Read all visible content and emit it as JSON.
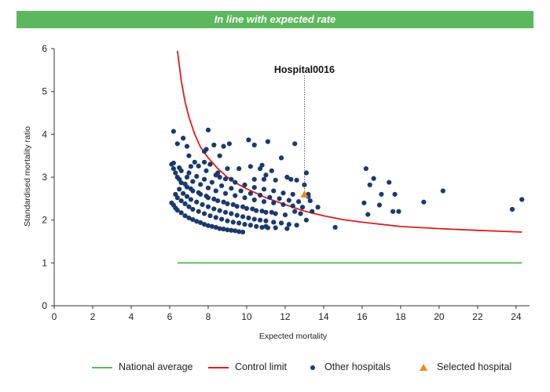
{
  "banner": {
    "text": "In line with expected rate",
    "color": "#5cb85c"
  },
  "chart_data": {
    "type": "scatter",
    "xlabel": "Expected mortality",
    "ylabel": "Standardised mortality ratio",
    "xlim": [
      0,
      24.7
    ],
    "ylim": [
      0,
      6
    ],
    "xticks": [
      "0",
      "2",
      "4",
      "6",
      "8",
      "10",
      "12",
      "14",
      "16",
      "18",
      "20",
      "22",
      "24"
    ],
    "yticks": [
      "0",
      "1",
      "2",
      "3",
      "4",
      "5",
      "6"
    ],
    "grid": false,
    "legend_position": "bottom",
    "national_average": {
      "name": "National average",
      "y": 1,
      "x_range": [
        6.4,
        24.3
      ],
      "color": "#5cb85c"
    },
    "control_limit": {
      "name": "Control limit",
      "color": "#e31a1c",
      "points": [
        [
          6.4,
          5.95
        ],
        [
          6.6,
          5.25
        ],
        [
          6.8,
          4.75
        ],
        [
          7.0,
          4.4
        ],
        [
          7.3,
          4.0
        ],
        [
          7.6,
          3.7
        ],
        [
          8.0,
          3.45
        ],
        [
          8.5,
          3.2
        ],
        [
          9.0,
          3.0
        ],
        [
          9.5,
          2.85
        ],
        [
          10.0,
          2.73
        ],
        [
          11.0,
          2.52
        ],
        [
          12.0,
          2.36
        ],
        [
          13.0,
          2.21
        ],
        [
          14.0,
          2.1
        ],
        [
          15.0,
          2.01
        ],
        [
          16.0,
          1.95
        ],
        [
          18.0,
          1.85
        ],
        [
          20.0,
          1.8
        ],
        [
          22.0,
          1.76
        ],
        [
          24.3,
          1.72
        ]
      ]
    },
    "other_hospitals": {
      "name": "Other hospitals",
      "color": "#1a3a6e",
      "points": [
        [
          6.2,
          4.07
        ],
        [
          6.4,
          3.78
        ],
        [
          6.7,
          3.91
        ],
        [
          6.9,
          3.72
        ],
        [
          7.0,
          3.5
        ],
        [
          7.3,
          3.35
        ],
        [
          7.5,
          3.26
        ],
        [
          8.0,
          4.1
        ],
        [
          7.8,
          3.6
        ],
        [
          7.9,
          3.65
        ],
        [
          8.3,
          3.75
        ],
        [
          8.6,
          3.5
        ],
        [
          8.8,
          3.72
        ],
        [
          9.1,
          3.78
        ],
        [
          8.1,
          3.3
        ],
        [
          8.5,
          3.1
        ],
        [
          9.0,
          3.2
        ],
        [
          9.6,
          3.2
        ],
        [
          10.1,
          3.87
        ],
        [
          10.4,
          3.75
        ],
        [
          11.1,
          3.83
        ],
        [
          12.5,
          3.78
        ],
        [
          10.2,
          3.25
        ],
        [
          10.8,
          3.28
        ],
        [
          11.3,
          3.15
        ],
        [
          11.8,
          3.45
        ],
        [
          12.1,
          3.0
        ],
        [
          13.1,
          3.1
        ],
        [
          11.0,
          3.05
        ],
        [
          10.7,
          3.2
        ],
        [
          6.2,
          3.33
        ],
        [
          6.5,
          3.22
        ],
        [
          7.1,
          3.25
        ],
        [
          7.8,
          3.35
        ],
        [
          8.6,
          3.0
        ],
        [
          9.2,
          2.95
        ],
        [
          10.4,
          2.95
        ],
        [
          10.9,
          2.95
        ],
        [
          11.5,
          2.93
        ],
        [
          12.3,
          2.95
        ],
        [
          13.2,
          2.6
        ],
        [
          6.1,
          3.3
        ],
        [
          6.2,
          3.2
        ],
        [
          6.4,
          3.0
        ],
        [
          6.6,
          2.87
        ],
        [
          6.9,
          2.77
        ],
        [
          7.2,
          2.68
        ],
        [
          7.6,
          2.6
        ],
        [
          8.0,
          2.52
        ],
        [
          8.5,
          2.45
        ],
        [
          9.0,
          2.38
        ],
        [
          9.5,
          2.32
        ],
        [
          10.0,
          2.27
        ],
        [
          10.5,
          2.22
        ],
        [
          11.0,
          2.18
        ],
        [
          11.5,
          2.15
        ],
        [
          12.0,
          2.12
        ],
        [
          6.3,
          3.1
        ],
        [
          6.5,
          2.95
        ],
        [
          6.8,
          2.84
        ],
        [
          7.1,
          2.73
        ],
        [
          7.5,
          2.64
        ],
        [
          7.9,
          2.56
        ],
        [
          8.3,
          2.49
        ],
        [
          8.8,
          2.42
        ],
        [
          9.3,
          2.36
        ],
        [
          9.8,
          2.31
        ],
        [
          10.3,
          2.26
        ],
        [
          10.8,
          2.21
        ],
        [
          11.3,
          2.18
        ],
        [
          6.6,
          3.15
        ],
        [
          6.9,
          3.0
        ],
        [
          7.2,
          2.9
        ],
        [
          7.6,
          2.83
        ],
        [
          8.0,
          2.75
        ],
        [
          8.4,
          2.68
        ],
        [
          8.9,
          2.62
        ],
        [
          9.4,
          2.57
        ],
        [
          9.9,
          2.52
        ],
        [
          10.4,
          2.47
        ],
        [
          10.9,
          2.43
        ],
        [
          11.4,
          2.4
        ],
        [
          11.9,
          2.36
        ],
        [
          12.4,
          2.33
        ],
        [
          12.9,
          2.3
        ],
        [
          7.0,
          3.1
        ],
        [
          7.4,
          3.02
        ],
        [
          7.8,
          2.95
        ],
        [
          8.2,
          2.88
        ],
        [
          8.7,
          2.8
        ],
        [
          9.2,
          2.74
        ],
        [
          9.7,
          2.68
        ],
        [
          10.2,
          2.62
        ],
        [
          10.7,
          2.58
        ],
        [
          11.2,
          2.53
        ],
        [
          11.7,
          2.5
        ],
        [
          12.2,
          2.46
        ],
        [
          12.7,
          2.43
        ],
        [
          7.9,
          3.15
        ],
        [
          8.4,
          3.05
        ],
        [
          8.9,
          2.96
        ],
        [
          9.4,
          2.88
        ],
        [
          9.9,
          2.82
        ],
        [
          10.4,
          2.76
        ],
        [
          10.9,
          2.72
        ],
        [
          11.4,
          2.68
        ],
        [
          11.9,
          2.63
        ],
        [
          12.4,
          2.6
        ],
        [
          12.6,
          2.93
        ],
        [
          13.0,
          2.82
        ],
        [
          6.1,
          2.4
        ],
        [
          6.2,
          2.35
        ],
        [
          6.3,
          2.28
        ],
        [
          6.4,
          2.23
        ],
        [
          6.6,
          2.17
        ],
        [
          6.8,
          2.1
        ],
        [
          7.0,
          2.05
        ],
        [
          7.2,
          2.01
        ],
        [
          7.4,
          1.97
        ],
        [
          7.6,
          1.94
        ],
        [
          7.8,
          1.9
        ],
        [
          8.0,
          1.87
        ],
        [
          8.2,
          1.85
        ],
        [
          8.4,
          1.83
        ],
        [
          8.6,
          1.8
        ],
        [
          8.8,
          1.79
        ],
        [
          9.0,
          1.77
        ],
        [
          9.2,
          1.76
        ],
        [
          9.4,
          1.75
        ],
        [
          9.6,
          1.73
        ],
        [
          9.8,
          1.72
        ],
        [
          6.3,
          2.6
        ],
        [
          6.4,
          2.52
        ],
        [
          6.6,
          2.45
        ],
        [
          6.8,
          2.38
        ],
        [
          7.0,
          2.31
        ],
        [
          7.2,
          2.25
        ],
        [
          7.5,
          2.2
        ],
        [
          7.8,
          2.15
        ],
        [
          8.1,
          2.1
        ],
        [
          8.4,
          2.06
        ],
        [
          8.7,
          2.02
        ],
        [
          9.0,
          1.98
        ],
        [
          9.3,
          1.95
        ],
        [
          9.6,
          1.93
        ],
        [
          9.9,
          1.9
        ],
        [
          10.2,
          1.88
        ],
        [
          10.5,
          1.85
        ],
        [
          10.8,
          1.83
        ],
        [
          11.1,
          1.82
        ],
        [
          6.5,
          2.72
        ],
        [
          6.7,
          2.62
        ],
        [
          6.9,
          2.55
        ],
        [
          7.1,
          2.48
        ],
        [
          7.4,
          2.42
        ],
        [
          7.7,
          2.36
        ],
        [
          8.0,
          2.31
        ],
        [
          8.3,
          2.26
        ],
        [
          8.6,
          2.22
        ],
        [
          8.9,
          2.18
        ],
        [
          9.2,
          2.15
        ],
        [
          9.5,
          2.11
        ],
        [
          9.8,
          2.08
        ],
        [
          10.1,
          2.05
        ],
        [
          10.4,
          2.02
        ],
        [
          10.7,
          2.0
        ],
        [
          11.0,
          1.98
        ],
        [
          11.4,
          1.95
        ],
        [
          11.8,
          1.93
        ],
        [
          12.2,
          1.9
        ],
        [
          12.6,
          1.88
        ],
        [
          11.5,
          1.82
        ],
        [
          11.0,
          1.85
        ],
        [
          12.1,
          1.8
        ],
        [
          12.5,
          2.2
        ],
        [
          12.8,
          2.15
        ],
        [
          13.1,
          2.0
        ],
        [
          13.4,
          2.2
        ],
        [
          13.7,
          2.3
        ],
        [
          13.3,
          2.45
        ],
        [
          13.2,
          2.55
        ],
        [
          14.6,
          1.83
        ],
        [
          16.1,
          2.4
        ],
        [
          16.3,
          2.13
        ],
        [
          16.2,
          3.2
        ],
        [
          16.4,
          2.82
        ],
        [
          16.6,
          2.97
        ],
        [
          16.9,
          2.35
        ],
        [
          17.0,
          2.6
        ],
        [
          17.4,
          2.88
        ],
        [
          17.6,
          2.2
        ],
        [
          17.7,
          2.6
        ],
        [
          17.9,
          2.2
        ],
        [
          19.2,
          2.42
        ],
        [
          20.2,
          2.68
        ],
        [
          23.8,
          2.25
        ],
        [
          24.3,
          2.48
        ]
      ]
    },
    "selected_hospital": {
      "name": "Selected hospital",
      "label": "Hospital0016",
      "x": 13.0,
      "y": 2.6,
      "color": "#ee8a1a"
    }
  }
}
